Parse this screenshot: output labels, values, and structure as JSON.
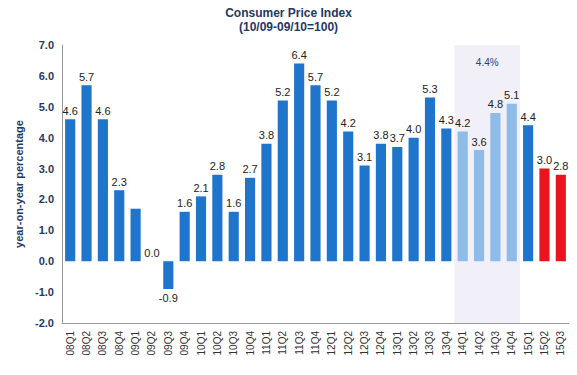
{
  "chart_data": {
    "type": "bar",
    "title": "Consumer Price Index",
    "subtitle": "(10/09-09/10=100)",
    "y_label": "year-on-year percentage",
    "categories": [
      "08Q1",
      "08Q2",
      "08Q3",
      "08Q4",
      "09Q1",
      "09Q2",
      "09Q3",
      "09Q4",
      "10Q1",
      "10Q2",
      "10Q3",
      "10Q4",
      "11Q1",
      "11Q2",
      "11Q3",
      "11Q4",
      "12Q1",
      "12Q2",
      "12Q3",
      "12Q4",
      "13Q1",
      "13Q2",
      "13Q3",
      "13Q4",
      "14Q1",
      "14Q2",
      "14Q3",
      "14Q4",
      "15Q1",
      "15Q2",
      "15Q3"
    ],
    "values": [
      4.6,
      5.7,
      4.6,
      2.3,
      1.7,
      0.0,
      -0.9,
      1.6,
      2.1,
      2.8,
      1.6,
      2.7,
      3.8,
      5.2,
      6.4,
      5.7,
      5.2,
      4.2,
      3.1,
      3.8,
      3.7,
      4.0,
      5.3,
      4.3,
      4.2,
      3.6,
      4.8,
      5.1,
      4.4,
      3.0,
      2.8
    ],
    "value_labels": [
      "4.6",
      "5.7",
      "4.6",
      "2.3",
      null,
      "0.0",
      "-0.9",
      "1.6",
      "2.1",
      "2.8",
      "1.6",
      "2.7",
      "3.8",
      "5.2",
      "6.4",
      "5.7",
      "5.2",
      "4.2",
      "3.1",
      "3.8",
      "3.7",
      "4.0",
      "5.3",
      "4.3",
      "4.2",
      "3.6",
      "4.8",
      "5.1",
      "4.4",
      "3.0",
      "2.8"
    ],
    "colors": [
      "#1f75cc",
      "#1f75cc",
      "#1f75cc",
      "#1f75cc",
      "#1f75cc",
      "#1f75cc",
      "#1f75cc",
      "#1f75cc",
      "#1f75cc",
      "#1f75cc",
      "#1f75cc",
      "#1f75cc",
      "#1f75cc",
      "#1f75cc",
      "#1f75cc",
      "#1f75cc",
      "#1f75cc",
      "#1f75cc",
      "#1f75cc",
      "#1f75cc",
      "#1f75cc",
      "#1f75cc",
      "#1f75cc",
      "#1f75cc",
      "#8fbbe8",
      "#8fbbe8",
      "#8fbbe8",
      "#8fbbe8",
      "#1f75cc",
      "#e8151f",
      "#e8151f"
    ],
    "annotation": {
      "text": "4.4%",
      "from": "14Q1",
      "to": "14Q4"
    },
    "ylim": [
      -2,
      7
    ],
    "yticks": [
      {
        "value": -2,
        "label": "-2.0"
      },
      {
        "value": -1,
        "label": "-1.0"
      },
      {
        "value": 0,
        "label": "0.0"
      },
      {
        "value": 1,
        "label": "1.0"
      },
      {
        "value": 2,
        "label": "2.0"
      },
      {
        "value": 3,
        "label": "3.0"
      },
      {
        "value": 4,
        "label": "4.0"
      },
      {
        "value": 5,
        "label": "5.0"
      },
      {
        "value": 6,
        "label": "6.0"
      },
      {
        "value": 7,
        "label": "7.0"
      }
    ],
    "grid": false,
    "data_labels": true
  }
}
